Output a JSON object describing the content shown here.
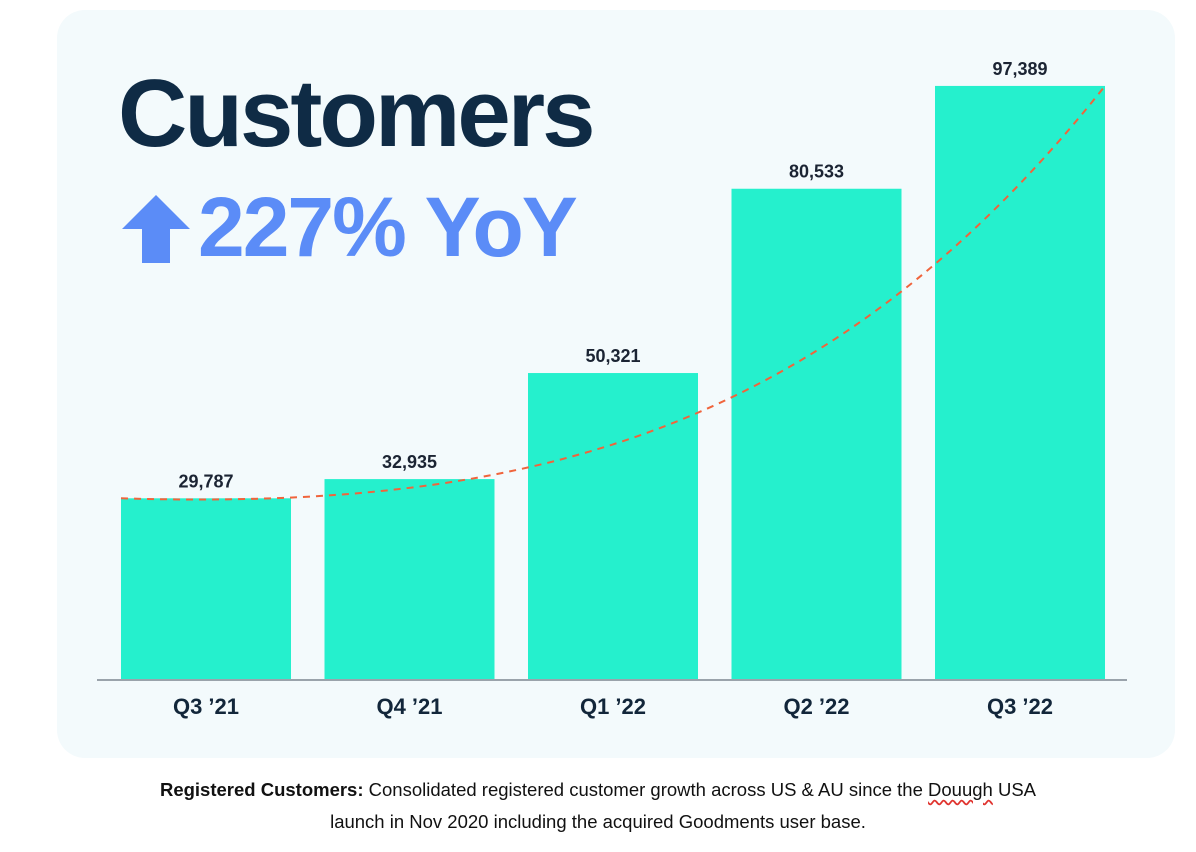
{
  "header": {
    "title": "Customers",
    "growth_text": "227% YoY",
    "growth_icon": "arrow-up-icon"
  },
  "colors": {
    "bar": "#25f0cd",
    "trend": "#f0643c",
    "title": "#0f2b45",
    "accent": "#5b8cf7",
    "card_bg": "#f3fafc"
  },
  "chart_data": {
    "type": "bar",
    "categories": [
      "Q3 ’21",
      "Q4 ’21",
      "Q1 ’22",
      "Q2 ’22",
      "Q3 ’22"
    ],
    "values": [
      29787,
      32935,
      50321,
      80533,
      97389
    ],
    "value_labels": [
      "29,787",
      "32,935",
      "50,321",
      "80,533",
      "97,389"
    ],
    "ylim": [
      0,
      100000
    ],
    "trendline": "dashed exponential",
    "grid": false
  },
  "footnote": {
    "bold": "Registered Customers:",
    "text_before": " Consolidated registered customer growth across US & AU since the ",
    "underlined": "Douugh",
    "text_after": " USA",
    "line2": "launch in Nov 2020 including the acquired Goodments user base."
  }
}
